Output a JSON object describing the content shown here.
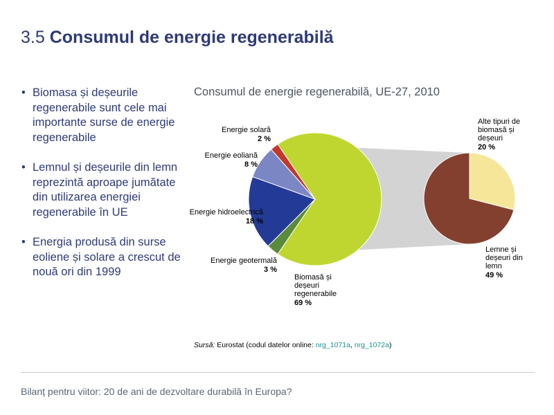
{
  "slide": {
    "number": "3.5",
    "title": "Consumul de energie regenerabilă"
  },
  "bullets": [
    "Biomasa și deșeurile regenerabile sunt cele mai importante surse de energie regenerabile",
    "Lemnul și deșeurile din lemn reprezintă aproape jumătate din utilizarea energiei regenerabile în UE",
    "Energia produsă din surse eoliene și solare a crescut de nouă ori din 1999"
  ],
  "bullet_symbol": "•",
  "chart_data": {
    "type": "pie",
    "title": "Consumul de energie regenerabilă, UE-27, 2010",
    "unit": "%",
    "slices": [
      {
        "label": "Biomasă și deșeuri regenerabile",
        "label_lines": [
          "Biomasă și",
          "deșeuri",
          "regenerabile"
        ],
        "value": 69,
        "value_text": "69 %",
        "color": "#bfd630"
      },
      {
        "label": "Energie geotermală",
        "label_lines": [
          "Energie geotermală"
        ],
        "value": 3,
        "value_text": "3 %",
        "color": "#5a8a3c"
      },
      {
        "label": "Energie hidroelectrică",
        "label_lines": [
          "Energie hidroelectrică"
        ],
        "value": 18,
        "value_text": "18 %",
        "color": "#233b96"
      },
      {
        "label": "Energie eoliană",
        "label_lines": [
          "Energie eoliană"
        ],
        "value": 8,
        "value_text": "8 %",
        "color": "#7b86c4"
      },
      {
        "label": "Energie solară",
        "label_lines": [
          "Energie solară"
        ],
        "value": 2,
        "value_text": "2 %",
        "color": "#c0392b"
      }
    ],
    "breakdown": {
      "of": "Biomasă și deșeuri regenerabile",
      "slices": [
        {
          "label": "Alte tipuri de biomasă și deșeuri",
          "label_lines": [
            "Alte tipuri de",
            "biomasă și",
            "deșeuri"
          ],
          "value": 20,
          "value_text": "20 %",
          "color": "#f5e69a"
        },
        {
          "label": "Lemne și deșeuri din lemn",
          "label_lines": [
            "Lemne și",
            "deșeuri din",
            "lemn"
          ],
          "value": 49,
          "value_text": "49 %",
          "color": "#84402f"
        }
      ]
    },
    "connector_color": "#d3d3d3"
  },
  "source": {
    "label": "Sursă:",
    "text": " Eurostat (codul datelor online: ",
    "link1": "nrg_1071a",
    "separator": ", ",
    "link2": "nrg_1072a",
    "close": ")"
  },
  "footer": "Bilanț pentru viitor: 20 de ani de dezvoltare durabilă în Europa?"
}
